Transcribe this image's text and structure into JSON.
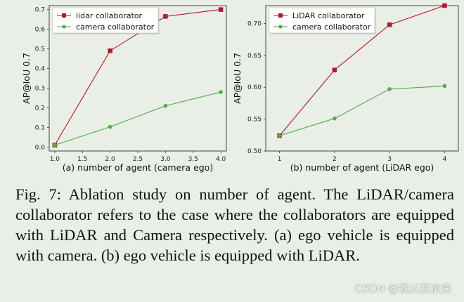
{
  "chart_data": [
    {
      "id": "a",
      "type": "line",
      "xlabel": "(a) number of agent (camera ego)",
      "ylabel": "AP@IoU 0.7",
      "x": [
        1,
        2,
        3,
        4
      ],
      "xlim": [
        0.9,
        4.1
      ],
      "ylim": [
        -0.02,
        0.72
      ],
      "xticks": [
        1.0,
        1.5,
        2.0,
        2.5,
        3.0,
        3.5,
        4.0
      ],
      "xtick_labels": [
        "1.0",
        "1.5",
        "2.0",
        "2.5",
        "3.0",
        "3.5",
        "4.0"
      ],
      "yticks": [
        0.0,
        0.1,
        0.2,
        0.3,
        0.4,
        0.5,
        0.6,
        0.7
      ],
      "ytick_labels": [
        "0.0",
        "0.1",
        "0.2",
        "0.3",
        "0.4",
        "0.5",
        "0.6",
        "0.7"
      ],
      "legend_position": "top-left",
      "series": [
        {
          "name": "lidar collaborator",
          "color": "#b2182b",
          "marker": "square",
          "values": [
            0.01,
            0.49,
            0.665,
            0.7
          ]
        },
        {
          "name": "camera collaborator",
          "color": "#4daf4a",
          "marker": "circle",
          "values": [
            0.01,
            0.103,
            0.21,
            0.28
          ]
        }
      ]
    },
    {
      "id": "b",
      "type": "line",
      "xlabel": "(b) number of agent (LiDAR ego)",
      "ylabel": "AP@IoU 0.7",
      "x": [
        1,
        2,
        3,
        4
      ],
      "xlim": [
        0.75,
        4.25
      ],
      "ylim": [
        0.5,
        0.728
      ],
      "xticks": [
        1,
        2,
        3,
        4
      ],
      "xtick_labels": [
        "1",
        "2",
        "3",
        "4"
      ],
      "yticks": [
        0.5,
        0.55,
        0.6,
        0.65,
        0.7
      ],
      "ytick_labels": [
        "0.50",
        "0.55",
        "0.60",
        "0.65",
        "0.70"
      ],
      "legend_position": "top-left",
      "series": [
        {
          "name": "LiDAR collaborator",
          "color": "#b2182b",
          "marker": "square",
          "values": [
            0.524,
            0.627,
            0.698,
            0.728
          ]
        },
        {
          "name": "camera collaborator",
          "color": "#4daf4a",
          "marker": "circle",
          "values": [
            0.524,
            0.551,
            0.597,
            0.602
          ]
        }
      ]
    }
  ],
  "caption": "Fig. 7: Ablation study on number of agent. The LiDAR/camera collaborator refers to the case where the collaborators are equipped with LiDAR and Camera respectively. (a) ego vehicle is equipped with camera. (b) ego vehicle is equipped with LiDAR.",
  "watermark": "CSDN @我从西京来"
}
